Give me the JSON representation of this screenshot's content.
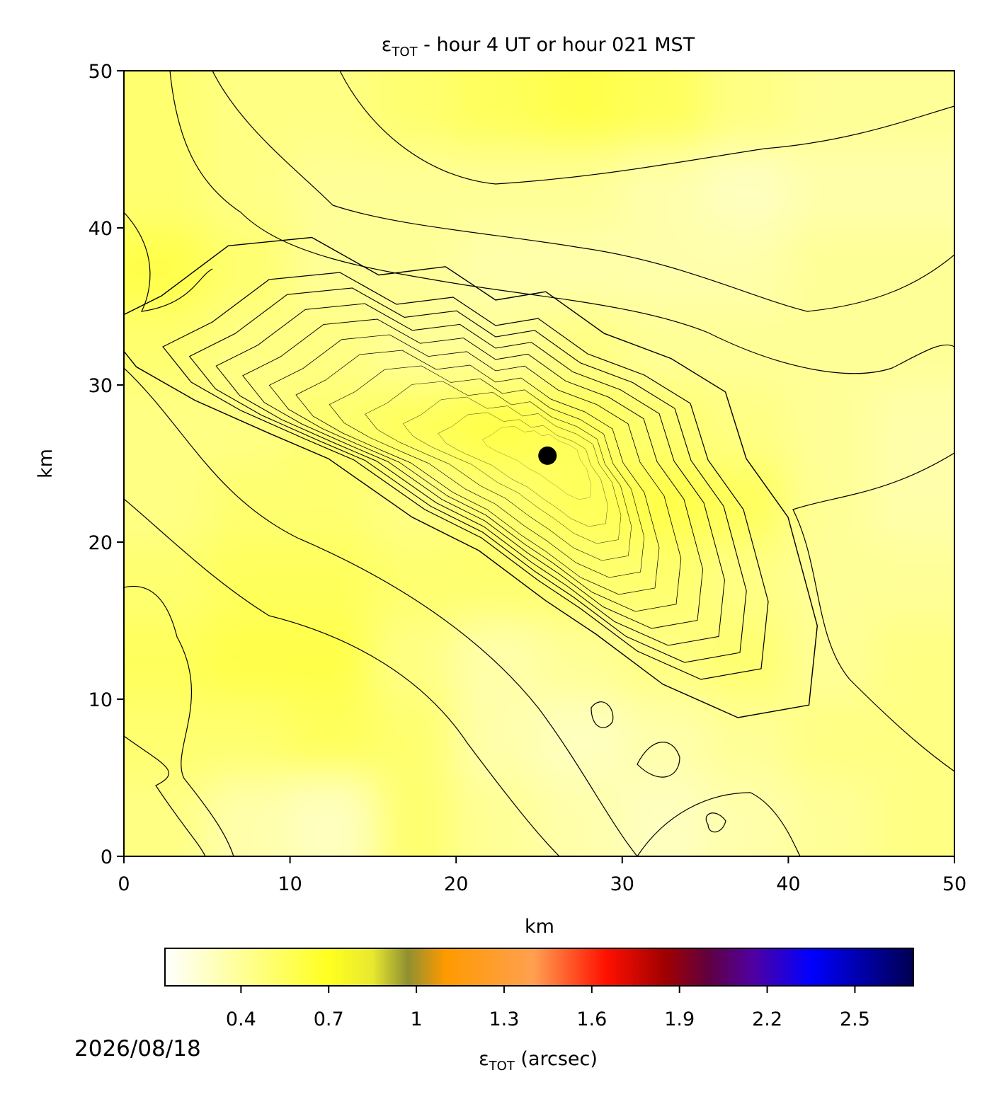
{
  "chart_data": {
    "type": "heatmap",
    "title": {
      "symbol": "ε",
      "subscript": "TOT",
      "text": " - hour 4 UT or hour 021 MST"
    },
    "xlabel": "km",
    "ylabel": "km",
    "xlim": [
      0,
      50
    ],
    "ylim": [
      0,
      50
    ],
    "xticks": [
      0,
      10,
      20,
      30,
      40,
      50
    ],
    "yticks": [
      0,
      10,
      20,
      30,
      40,
      50
    ],
    "field": {
      "x": [
        2.5,
        7.5,
        12.5,
        17.5,
        22.5,
        27.5,
        32.5,
        37.5,
        42.5,
        47.5
      ],
      "y": [
        2.5,
        7.5,
        12.5,
        17.5,
        22.5,
        27.5,
        32.5,
        37.5,
        42.5,
        47.5
      ],
      "values": [
        [
          0.45,
          0.35,
          0.3,
          0.5,
          0.4,
          0.35,
          0.3,
          0.35,
          0.4,
          0.45
        ],
        [
          0.5,
          0.5,
          0.55,
          0.5,
          0.35,
          0.3,
          0.35,
          0.4,
          0.45,
          0.45
        ],
        [
          0.55,
          0.6,
          0.6,
          0.45,
          0.35,
          0.4,
          0.45,
          0.5,
          0.4,
          0.45
        ],
        [
          0.5,
          0.55,
          0.55,
          0.5,
          0.5,
          0.5,
          0.5,
          0.45,
          0.4,
          0.4
        ],
        [
          0.45,
          0.5,
          0.5,
          0.45,
          0.5,
          0.55,
          0.6,
          0.55,
          0.4,
          0.35
        ],
        [
          0.45,
          0.45,
          0.5,
          0.55,
          0.6,
          0.55,
          0.5,
          0.45,
          0.4,
          0.35
        ],
        [
          0.5,
          0.45,
          0.45,
          0.4,
          0.4,
          0.45,
          0.4,
          0.4,
          0.4,
          0.4
        ],
        [
          0.6,
          0.5,
          0.4,
          0.4,
          0.35,
          0.35,
          0.35,
          0.35,
          0.4,
          0.4
        ],
        [
          0.5,
          0.45,
          0.4,
          0.4,
          0.4,
          0.4,
          0.35,
          0.3,
          0.35,
          0.35
        ],
        [
          0.5,
          0.45,
          0.45,
          0.5,
          0.55,
          0.6,
          0.55,
          0.45,
          0.4,
          0.4
        ]
      ]
    },
    "marker": {
      "x": 25.5,
      "y": 25.5,
      "color": "#000000"
    },
    "colormap": [
      {
        "value": 0.14,
        "color": "#ffffff"
      },
      {
        "value": 0.7,
        "color": "#ffff20"
      },
      {
        "value": 0.85,
        "color": "#e8e830"
      },
      {
        "value": 0.97,
        "color": "#8f9030"
      },
      {
        "value": 1.1,
        "color": "#ff9a00"
      },
      {
        "value": 1.4,
        "color": "#ffa050"
      },
      {
        "value": 1.65,
        "color": "#ff1000"
      },
      {
        "value": 1.85,
        "color": "#a00000"
      },
      {
        "value": 2.0,
        "color": "#600040"
      },
      {
        "value": 2.15,
        "color": "#5000a0"
      },
      {
        "value": 2.35,
        "color": "#0000ff"
      },
      {
        "value": 2.7,
        "color": "#000050"
      }
    ],
    "clim": [
      0.14,
      2.7
    ],
    "cticks": [
      0.4,
      0.7,
      1.0,
      1.3,
      1.6,
      1.9,
      2.2,
      2.5
    ],
    "clabel": {
      "symbol": "ε",
      "subscript": "TOT",
      "text": " (arcsec)"
    },
    "date": "2026/08/18"
  }
}
